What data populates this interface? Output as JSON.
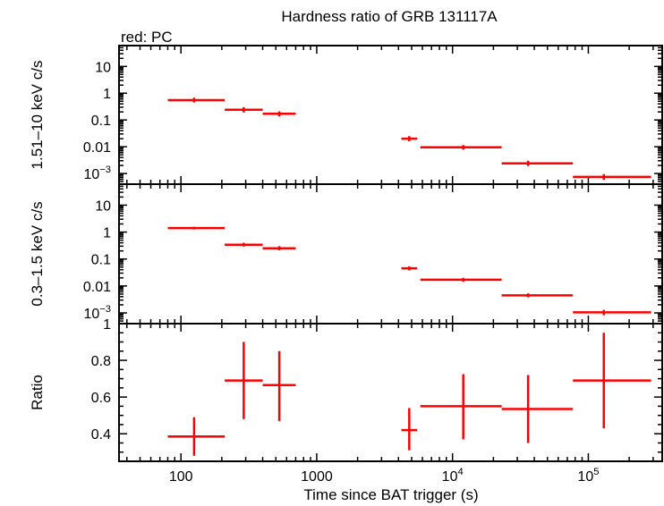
{
  "chart_data": [
    {
      "type": "scatter",
      "title": "Hardness ratio of GRB 131117A",
      "subtitle": "red: PC",
      "ylabel": "1.51–10 keV c/s",
      "xscale": "log",
      "yscale": "log",
      "xlim": [
        35,
        350000
      ],
      "ylim": [
        0.0004,
        60
      ],
      "yticks": [
        {
          "value": 10,
          "label": "10"
        },
        {
          "value": 1,
          "label": "1"
        },
        {
          "value": 0.1,
          "label": "0.1"
        },
        {
          "value": 0.01,
          "label": "0.01"
        },
        {
          "value": 0.001,
          "label": "10",
          "sup": "−3"
        }
      ],
      "points": [
        {
          "x": 125,
          "xlo": 80,
          "xhi": 210,
          "y": 0.55,
          "ylo": 0.45,
          "yhi": 0.68
        },
        {
          "x": 290,
          "xlo": 210,
          "xhi": 400,
          "y": 0.24,
          "ylo": 0.19,
          "yhi": 0.3
        },
        {
          "x": 530,
          "xlo": 400,
          "xhi": 700,
          "y": 0.17,
          "ylo": 0.135,
          "yhi": 0.21
        },
        {
          "x": 4800,
          "xlo": 4200,
          "xhi": 5500,
          "y": 0.02,
          "ylo": 0.016,
          "yhi": 0.025
        },
        {
          "x": 12000,
          "xlo": 5800,
          "xhi": 23000,
          "y": 0.0095,
          "ylo": 0.0078,
          "yhi": 0.0115
        },
        {
          "x": 36000,
          "xlo": 23000,
          "xhi": 77000,
          "y": 0.0024,
          "ylo": 0.0019,
          "yhi": 0.003
        },
        {
          "x": 130000,
          "xlo": 77000,
          "xhi": 290000,
          "y": 0.00075,
          "ylo": 0.00058,
          "yhi": 0.00095
        }
      ]
    },
    {
      "type": "scatter",
      "ylabel": "0.3–1.5 keV c/s",
      "xscale": "log",
      "yscale": "log",
      "xlim": [
        35,
        350000
      ],
      "ylim": [
        0.0004,
        60
      ],
      "yticks": [
        {
          "value": 10,
          "label": "10"
        },
        {
          "value": 1,
          "label": "1"
        },
        {
          "value": 0.1,
          "label": "0.1"
        },
        {
          "value": 0.01,
          "label": "0.01"
        },
        {
          "value": 0.001,
          "label": "10",
          "sup": "−3"
        }
      ],
      "points": [
        {
          "x": 125,
          "xlo": 80,
          "xhi": 210,
          "y": 1.4,
          "ylo": 1.25,
          "yhi": 1.57
        },
        {
          "x": 290,
          "xlo": 210,
          "xhi": 400,
          "y": 0.34,
          "ylo": 0.29,
          "yhi": 0.4
        },
        {
          "x": 530,
          "xlo": 400,
          "xhi": 700,
          "y": 0.25,
          "ylo": 0.21,
          "yhi": 0.3
        },
        {
          "x": 4800,
          "xlo": 4200,
          "xhi": 5500,
          "y": 0.045,
          "ylo": 0.038,
          "yhi": 0.053
        },
        {
          "x": 12000,
          "xlo": 5800,
          "xhi": 23000,
          "y": 0.017,
          "ylo": 0.0145,
          "yhi": 0.02
        },
        {
          "x": 36000,
          "xlo": 23000,
          "xhi": 77000,
          "y": 0.0045,
          "ylo": 0.0038,
          "yhi": 0.0053
        },
        {
          "x": 130000,
          "xlo": 77000,
          "xhi": 290000,
          "y": 0.00105,
          "ylo": 0.00082,
          "yhi": 0.0013
        }
      ]
    },
    {
      "type": "scatter",
      "ylabel": "Ratio",
      "xlabel": "Time since BAT trigger (s)",
      "xscale": "log",
      "yscale": "linear",
      "xlim": [
        35,
        350000
      ],
      "ylim": [
        0.25,
        1.0
      ],
      "yticks": [
        {
          "value": 1,
          "label": "1"
        },
        {
          "value": 0.8,
          "label": "0.8"
        },
        {
          "value": 0.6,
          "label": "0.6"
        },
        {
          "value": 0.4,
          "label": "0.4"
        }
      ],
      "xticks": [
        {
          "value": 100,
          "label": "100"
        },
        {
          "value": 1000,
          "label": "1000"
        },
        {
          "value": 10000,
          "label": "10",
          "sup": "4"
        },
        {
          "value": 100000,
          "label": "10",
          "sup": "5"
        }
      ],
      "points": [
        {
          "x": 125,
          "xlo": 80,
          "xhi": 210,
          "y": 0.385,
          "ylo": 0.28,
          "yhi": 0.49
        },
        {
          "x": 290,
          "xlo": 210,
          "xhi": 400,
          "y": 0.69,
          "ylo": 0.48,
          "yhi": 0.9
        },
        {
          "x": 530,
          "xlo": 400,
          "xhi": 700,
          "y": 0.665,
          "ylo": 0.47,
          "yhi": 0.85
        },
        {
          "x": 4800,
          "xlo": 4200,
          "xhi": 5500,
          "y": 0.42,
          "ylo": 0.31,
          "yhi": 0.54
        },
        {
          "x": 12000,
          "xlo": 5800,
          "xhi": 23000,
          "y": 0.55,
          "ylo": 0.37,
          "yhi": 0.725
        },
        {
          "x": 36000,
          "xlo": 23000,
          "xhi": 77000,
          "y": 0.535,
          "ylo": 0.35,
          "yhi": 0.72
        },
        {
          "x": 130000,
          "xlo": 77000,
          "xhi": 290000,
          "y": 0.69,
          "ylo": 0.43,
          "yhi": 0.95
        }
      ]
    }
  ],
  "colors": {
    "data": "#ff0000",
    "axes": "#000000"
  }
}
